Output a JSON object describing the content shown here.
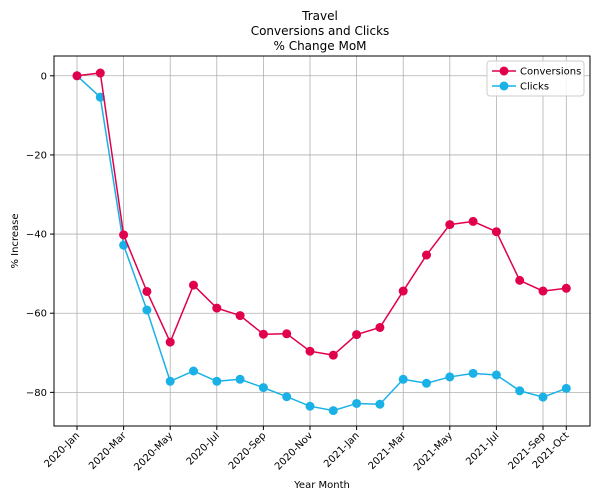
{
  "chart_data": {
    "type": "line",
    "title_lines": [
      "Travel",
      "Conversions and Clicks",
      "% Change MoM"
    ],
    "xlabel": "Year Month",
    "ylabel": "% Increase",
    "ylim": [
      -88.5,
      5
    ],
    "yticks": [
      0,
      -20,
      -40,
      -60,
      -80
    ],
    "x": [
      "2020-Jan",
      "2020-Feb",
      "2020-Mar",
      "2020-Apr",
      "2020-May",
      "2020-Jun",
      "2020-Jul",
      "2020-Aug",
      "2020-Sep",
      "2020-Oct",
      "2020-Nov",
      "2020-Dec",
      "2021-Jan",
      "2021-Feb",
      "2021-Mar",
      "2021-Apr",
      "2021-May",
      "2021-Jun",
      "2021-Jul",
      "2021-Aug",
      "2021-Sep",
      "2021-Oct"
    ],
    "xtick_labels": [
      "2020-Jan",
      "2020-Mar",
      "2020-May",
      "2020-Jul",
      "2020-Sep",
      "2020-Nov",
      "2021-Jan",
      "2021-Mar",
      "2021-May",
      "2021-Jul",
      "2021-Sep",
      "2021-Oct"
    ],
    "grid": true,
    "legend_position": "top-right",
    "series": [
      {
        "name": "Conversions",
        "color": "#e0004e",
        "values": [
          0,
          0.7,
          -40.2,
          -54.5,
          -67.3,
          -52.9,
          -58.7,
          -60.6,
          -65.3,
          -65.2,
          -69.6,
          -70.6,
          -65.4,
          -63.6,
          -54.4,
          -45.3,
          -37.6,
          -36.8,
          -39.4,
          -51.7,
          -54.4,
          -53.7
        ]
      },
      {
        "name": "Clicks",
        "color": "#1ab1e6",
        "values": [
          0,
          -5.4,
          -42.8,
          -59.2,
          -77.2,
          -74.6,
          -77.2,
          -76.7,
          -78.8,
          -81.1,
          -83.5,
          -84.6,
          -82.8,
          -83.0,
          -76.7,
          -77.7,
          -76.1,
          -75.2,
          -75.6,
          -79.6,
          -81.2,
          -79.0
        ]
      }
    ]
  }
}
